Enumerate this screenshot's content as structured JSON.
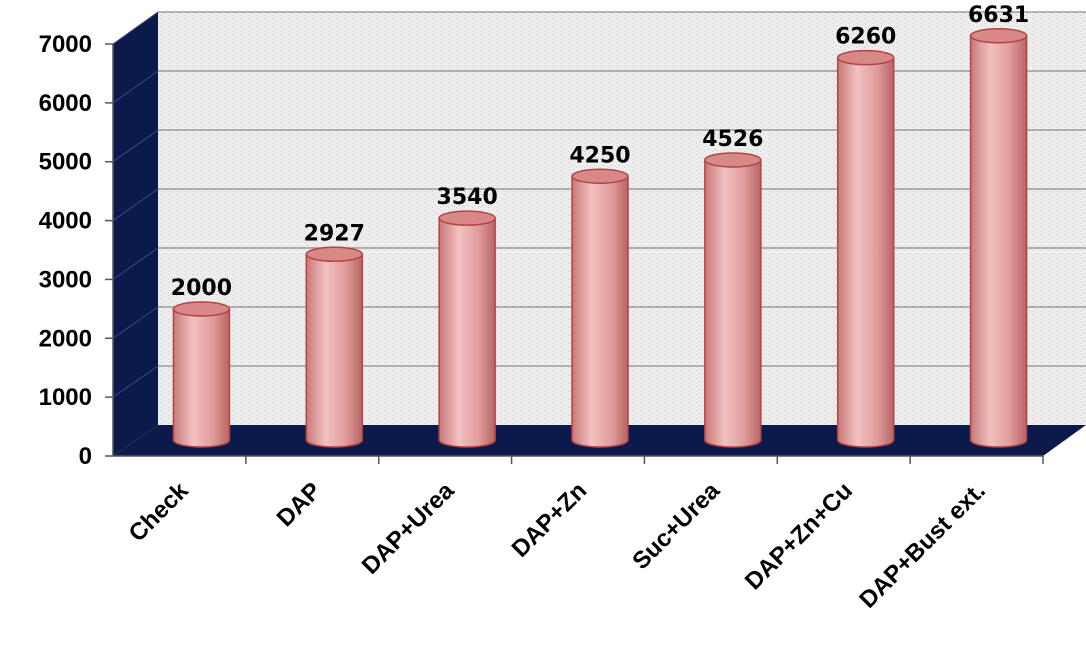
{
  "chart_data": {
    "type": "bar",
    "categories": [
      "Check",
      "DAP",
      "DAP+Urea",
      "DAP+Zn",
      "Suc+Urea",
      "DAP+Zn+Cu",
      "DAP+Bust ext."
    ],
    "values": [
      2000,
      2927,
      3540,
      4250,
      4526,
      6260,
      6631
    ],
    "data_labels": [
      "2000",
      "2927",
      "3540",
      "4250",
      "4526",
      "6260",
      "6631"
    ],
    "y_ticks": [
      "0",
      "1000",
      "2000",
      "3000",
      "4000",
      "5000",
      "6000",
      "7000"
    ],
    "title": "",
    "xlabel": "",
    "ylabel": "",
    "ylim": [
      0,
      7000
    ],
    "grid": true,
    "legend": "none",
    "bar_style": "3d-cylinder",
    "colors": {
      "bar": "#e0a0a0",
      "bar_edge": "#b24444",
      "wall_side": "#0b1a4a",
      "floor": "#0b1a4a",
      "back_wall": "#ececec",
      "grid": "#8c8c8c"
    }
  }
}
